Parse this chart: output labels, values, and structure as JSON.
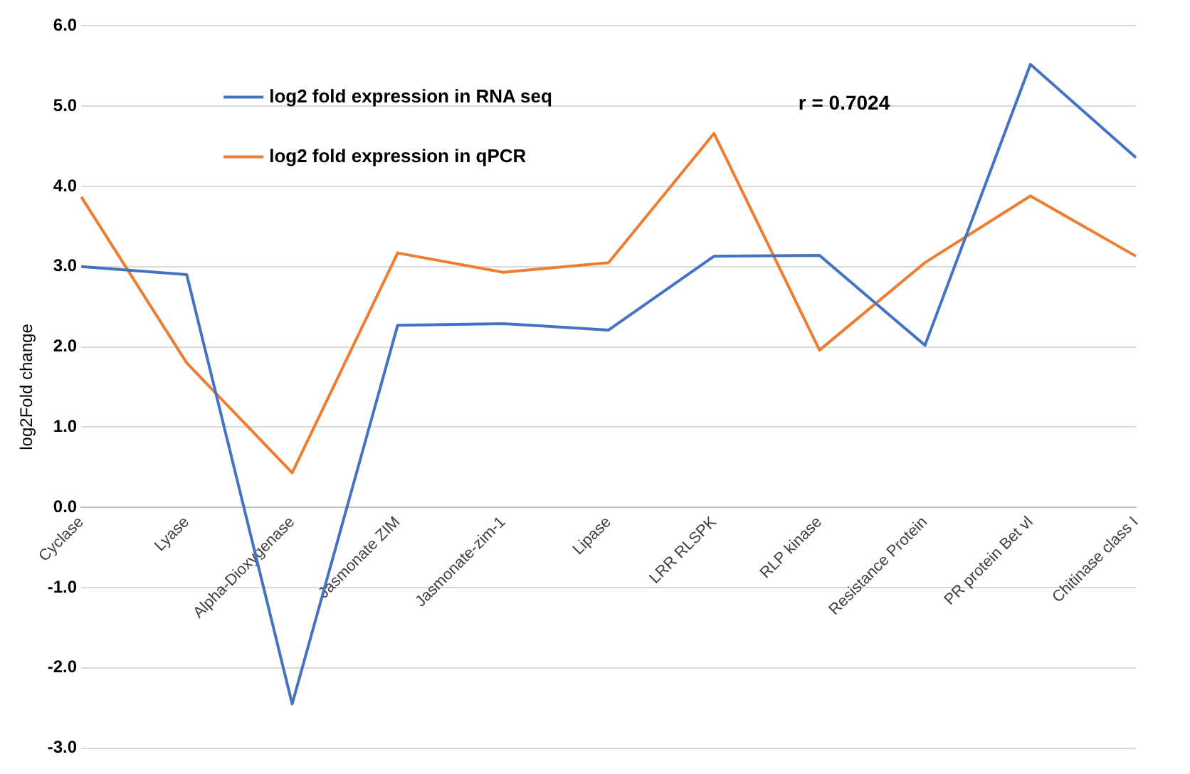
{
  "chart_data": {
    "type": "line",
    "ylabel": "log2Fold change",
    "categories": [
      "Cyclase",
      "Lyase",
      "Alpha-Dioxygenase",
      "Jasmonate ZIM",
      "Jasmonate-zim-1",
      "Lipase",
      "LRR RLSPK",
      "RLP kinase",
      "Resistance Protein",
      "PR protein Bet vl",
      "Chitinase class I"
    ],
    "series": [
      {
        "name": "log2 fold expression in RNA seq",
        "color": "#4472c4",
        "values": [
          3.0,
          2.9,
          -2.45,
          2.27,
          2.29,
          2.21,
          3.13,
          3.14,
          2.02,
          5.52,
          4.36
        ]
      },
      {
        "name": "log2 fold expression in qPCR",
        "color": "#ed7d31",
        "values": [
          3.87,
          1.8,
          0.43,
          3.17,
          2.93,
          3.05,
          4.66,
          1.96,
          3.05,
          3.88,
          3.13
        ]
      }
    ],
    "ylim": [
      -3,
      6
    ],
    "yticks": [
      {
        "value": -3,
        "label": "-3.0"
      },
      {
        "value": -2,
        "label": "-2.0"
      },
      {
        "value": -1,
        "label": "-1.0"
      },
      {
        "value": 0,
        "label": "0.0"
      },
      {
        "value": 1,
        "label": "1.0"
      },
      {
        "value": 2,
        "label": "2.0"
      },
      {
        "value": 3,
        "label": "3.0"
      },
      {
        "value": 4,
        "label": "4.0"
      },
      {
        "value": 5,
        "label": "5.0"
      },
      {
        "value": 6,
        "label": "6.0"
      }
    ],
    "grid": "y",
    "legend": "top left",
    "marker": "none",
    "line_style": "solid",
    "annotations": [
      "r = 0.7024"
    ]
  }
}
